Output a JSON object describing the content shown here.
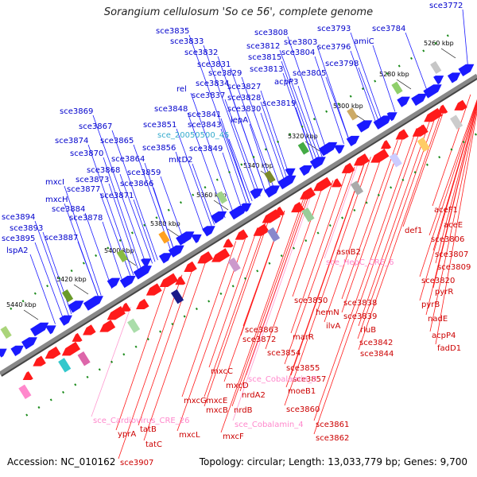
{
  "title": "Sorangium cellulosum 'So ce 56', complete genome",
  "footer": {
    "accession": "Accession: NC_010162",
    "info": "Topology: circular; Length: 13,033,779 bp; Genes: 9,700"
  },
  "colors": {
    "forward": "#1a1aff",
    "reverse": "#ff1a1a",
    "misc": "#ff9ad0",
    "cyan": "#33c8cc",
    "backbone": "#888888",
    "dots": "#1a8a1a"
  },
  "kbp_ticks": [
    "5260 kbp",
    "5280 kbp",
    "5300 kbp",
    "5320 kbp",
    "5340 kbp",
    "5360 kbp",
    "5380 kbp",
    "5400 kbp",
    "5420 kbp",
    "5440 kbp"
  ],
  "upper_labels": [
    {
      "text": "sce3772",
      "color": "#0000cc"
    },
    {
      "text": "sce3835",
      "color": "#0000cc"
    },
    {
      "text": "sce3833",
      "color": "#0000cc"
    },
    {
      "text": "sce3808",
      "color": "#0000cc"
    },
    {
      "text": "sce3793",
      "color": "#0000cc"
    },
    {
      "text": "sce3784",
      "color": "#0000cc"
    },
    {
      "text": "sce3832",
      "color": "#0000cc"
    },
    {
      "text": "sce3812",
      "color": "#0000cc"
    },
    {
      "text": "sce3803",
      "color": "#0000cc"
    },
    {
      "text": "amiC",
      "color": "#0000cc"
    },
    {
      "text": "sce3831",
      "color": "#0000cc"
    },
    {
      "text": "sce3815",
      "color": "#0000cc"
    },
    {
      "text": "sce3804",
      "color": "#0000cc"
    },
    {
      "text": "sce3796",
      "color": "#0000cc"
    },
    {
      "text": "sce3829",
      "color": "#0000cc"
    },
    {
      "text": "sce3813",
      "color": "#0000cc"
    },
    {
      "text": "sce3798",
      "color": "#0000cc"
    },
    {
      "text": "sce3834",
      "color": "#0000cc"
    },
    {
      "text": "sce3805",
      "color": "#0000cc"
    },
    {
      "text": "rel",
      "color": "#0000cc"
    },
    {
      "text": "sce3827",
      "color": "#0000cc"
    },
    {
      "text": "acpP3",
      "color": "#0000cc"
    },
    {
      "text": "sce3837",
      "color": "#0000cc"
    },
    {
      "text": "sce3828",
      "color": "#0000cc"
    },
    {
      "text": "sce3848",
      "color": "#0000cc"
    },
    {
      "text": "sce3819",
      "color": "#0000cc"
    },
    {
      "text": "sce3830",
      "color": "#0000cc"
    },
    {
      "text": "sce3869",
      "color": "#0000cc"
    },
    {
      "text": "sce3841",
      "color": "#0000cc"
    },
    {
      "text": "lepA",
      "color": "#0000cc"
    },
    {
      "text": "sce3867",
      "color": "#0000cc"
    },
    {
      "text": "sce3851",
      "color": "#0000cc"
    },
    {
      "text": "sce3843",
      "color": "#0000cc"
    },
    {
      "text": "sce_20050500_45",
      "color": "#33aacc"
    },
    {
      "text": "sce3874",
      "color": "#0000cc"
    },
    {
      "text": "sce3865",
      "color": "#0000cc"
    },
    {
      "text": "sce3856",
      "color": "#0000cc"
    },
    {
      "text": "sce3849",
      "color": "#0000cc"
    },
    {
      "text": "sce3870",
      "color": "#0000cc"
    },
    {
      "text": "sce3864",
      "color": "#0000cc"
    },
    {
      "text": "mltD2",
      "color": "#0000cc"
    },
    {
      "text": "sce3868",
      "color": "#0000cc"
    },
    {
      "text": "sce3859",
      "color": "#0000cc"
    },
    {
      "text": "sce3873",
      "color": "#0000cc"
    },
    {
      "text": "mxcI",
      "color": "#0000cc"
    },
    {
      "text": "sce3866",
      "color": "#0000cc"
    },
    {
      "text": "sce3877",
      "color": "#0000cc"
    },
    {
      "text": "sce3871",
      "color": "#0000cc"
    },
    {
      "text": "mxcH",
      "color": "#0000cc"
    },
    {
      "text": "sce3884",
      "color": "#0000cc"
    },
    {
      "text": "sce3878",
      "color": "#0000cc"
    },
    {
      "text": "sce3894",
      "color": "#0000cc"
    },
    {
      "text": "sce3893",
      "color": "#0000cc"
    },
    {
      "text": "sce3895",
      "color": "#0000cc"
    },
    {
      "text": "sce3887",
      "color": "#0000cc"
    },
    {
      "text": "lspA2",
      "color": "#0000cc"
    }
  ],
  "lower_labels": [
    {
      "text": "aceF1",
      "color": "#cc0000"
    },
    {
      "text": "aceE",
      "color": "#cc0000"
    },
    {
      "text": "def1",
      "color": "#cc0000"
    },
    {
      "text": "sce3806",
      "color": "#cc0000"
    },
    {
      "text": "sce3807",
      "color": "#cc0000"
    },
    {
      "text": "asnB2",
      "color": "#cc0000"
    },
    {
      "text": "sce3809",
      "color": "#cc0000"
    },
    {
      "text": "sce_HepC_CRE_6",
      "color": "#ff88cc"
    },
    {
      "text": "sce3820",
      "color": "#cc0000"
    },
    {
      "text": "pyrR",
      "color": "#cc0000"
    },
    {
      "text": "sce3850",
      "color": "#cc0000"
    },
    {
      "text": "sce3838",
      "color": "#cc0000"
    },
    {
      "text": "pyrB",
      "color": "#cc0000"
    },
    {
      "text": "hemN",
      "color": "#cc0000"
    },
    {
      "text": "sce3839",
      "color": "#cc0000"
    },
    {
      "text": "nadE",
      "color": "#cc0000"
    },
    {
      "text": "ilvA",
      "color": "#cc0000"
    },
    {
      "text": "rluB",
      "color": "#cc0000"
    },
    {
      "text": "sce3863",
      "color": "#cc0000"
    },
    {
      "text": "acpP4",
      "color": "#cc0000"
    },
    {
      "text": "sce3872",
      "color": "#cc0000"
    },
    {
      "text": "marR",
      "color": "#cc0000"
    },
    {
      "text": "sce3842",
      "color": "#cc0000"
    },
    {
      "text": "fadD1",
      "color": "#cc0000"
    },
    {
      "text": "sce3854",
      "color": "#cc0000"
    },
    {
      "text": "sce3844",
      "color": "#cc0000"
    },
    {
      "text": "sce3855",
      "color": "#cc0000"
    },
    {
      "text": "sce3857",
      "color": "#cc0000"
    },
    {
      "text": "mxcC",
      "color": "#cc0000"
    },
    {
      "text": "sce_Cobalamin_5",
      "color": "#ff88cc"
    },
    {
      "text": "mxcD",
      "color": "#cc0000"
    },
    {
      "text": "moeB1",
      "color": "#cc0000"
    },
    {
      "text": "nrdA2",
      "color": "#cc0000"
    },
    {
      "text": "mxcG",
      "color": "#cc0000"
    },
    {
      "text": "mxcE",
      "color": "#cc0000"
    },
    {
      "text": "mxcB",
      "color": "#cc0000"
    },
    {
      "text": "nrdB",
      "color": "#cc0000"
    },
    {
      "text": "sce3860",
      "color": "#cc0000"
    },
    {
      "text": "sce_Cardiovirus_CRE_26",
      "color": "#ff88cc"
    },
    {
      "text": "sce_Cobalamin_4",
      "color": "#ff88cc"
    },
    {
      "text": "sce3861",
      "color": "#cc0000"
    },
    {
      "text": "tatB",
      "color": "#cc0000"
    },
    {
      "text": "yprA",
      "color": "#cc0000"
    },
    {
      "text": "mxcL",
      "color": "#cc0000"
    },
    {
      "text": "mxcF",
      "color": "#cc0000"
    },
    {
      "text": "sce3862",
      "color": "#cc0000"
    },
    {
      "text": "tatC",
      "color": "#cc0000"
    },
    {
      "text": "sce3907",
      "color": "#cc0000"
    }
  ]
}
